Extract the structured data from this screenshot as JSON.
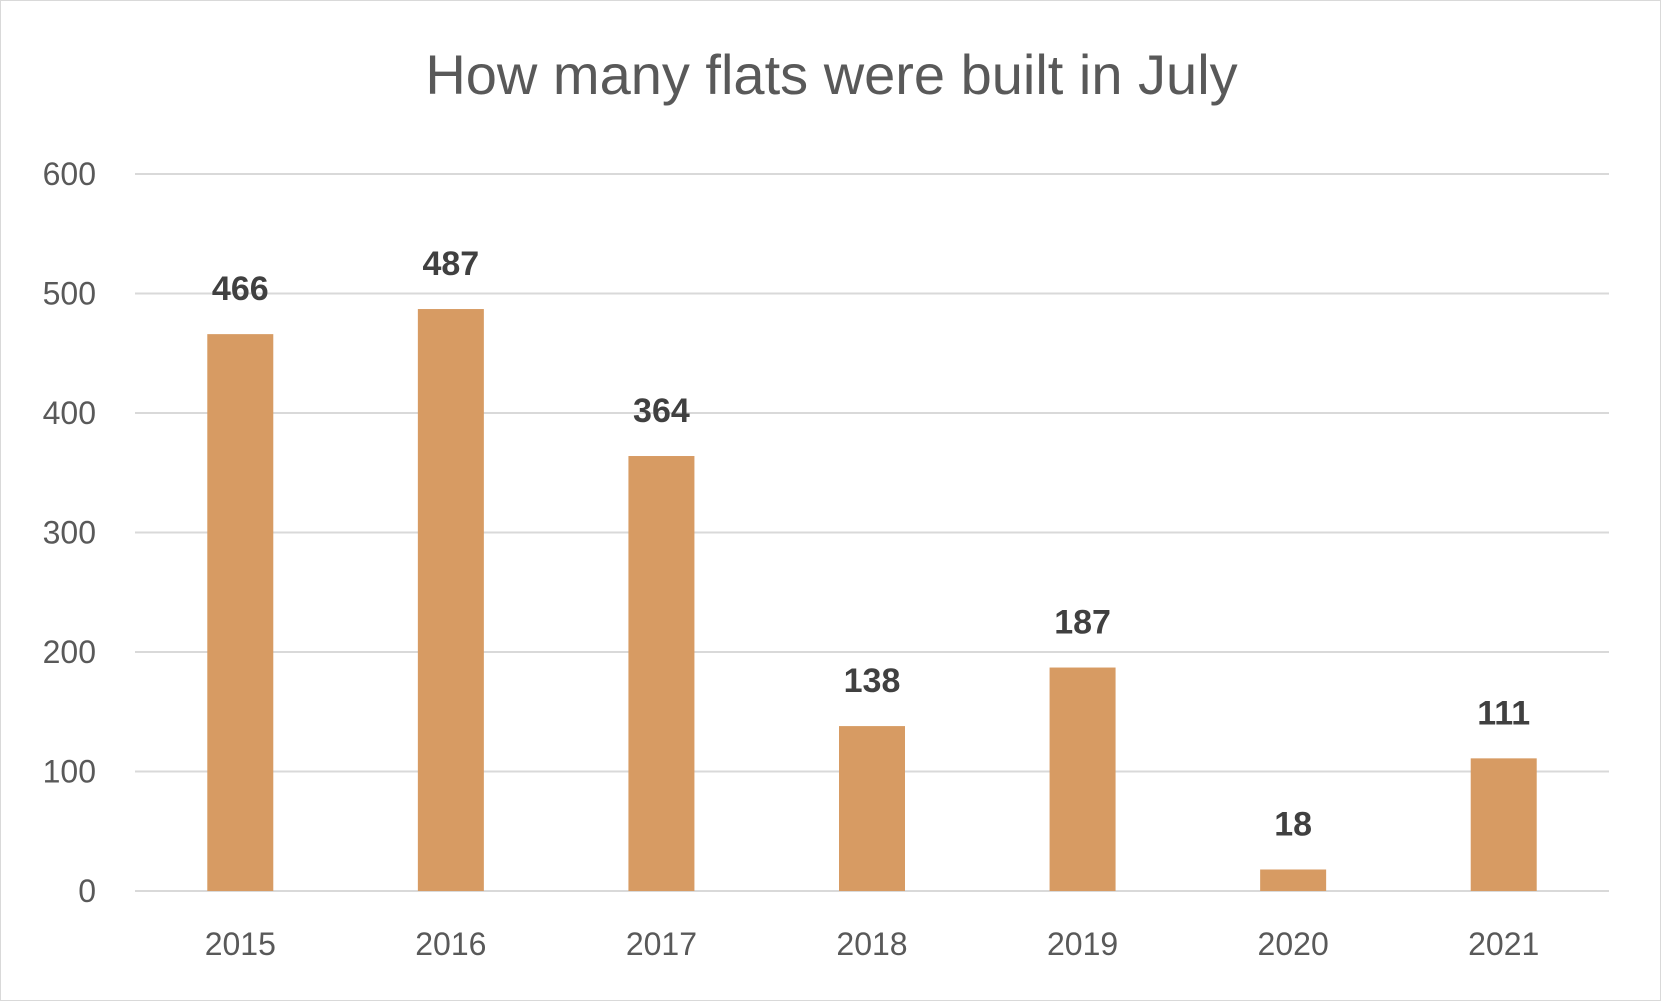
{
  "chart_data": {
    "type": "bar",
    "title": "How many flats were built in July",
    "categories": [
      "2015",
      "2016",
      "2017",
      "2018",
      "2019",
      "2020",
      "2021"
    ],
    "values": [
      466,
      487,
      364,
      138,
      187,
      18,
      111
    ],
    "ylim": [
      0,
      600
    ],
    "yticks": [
      0,
      100,
      200,
      300,
      400,
      500,
      600
    ],
    "grid": true,
    "data_labels": true,
    "colors": {
      "bar": "#d79b63",
      "grid": "#d9d9d9",
      "text": "#595959",
      "label": "#404040"
    }
  }
}
